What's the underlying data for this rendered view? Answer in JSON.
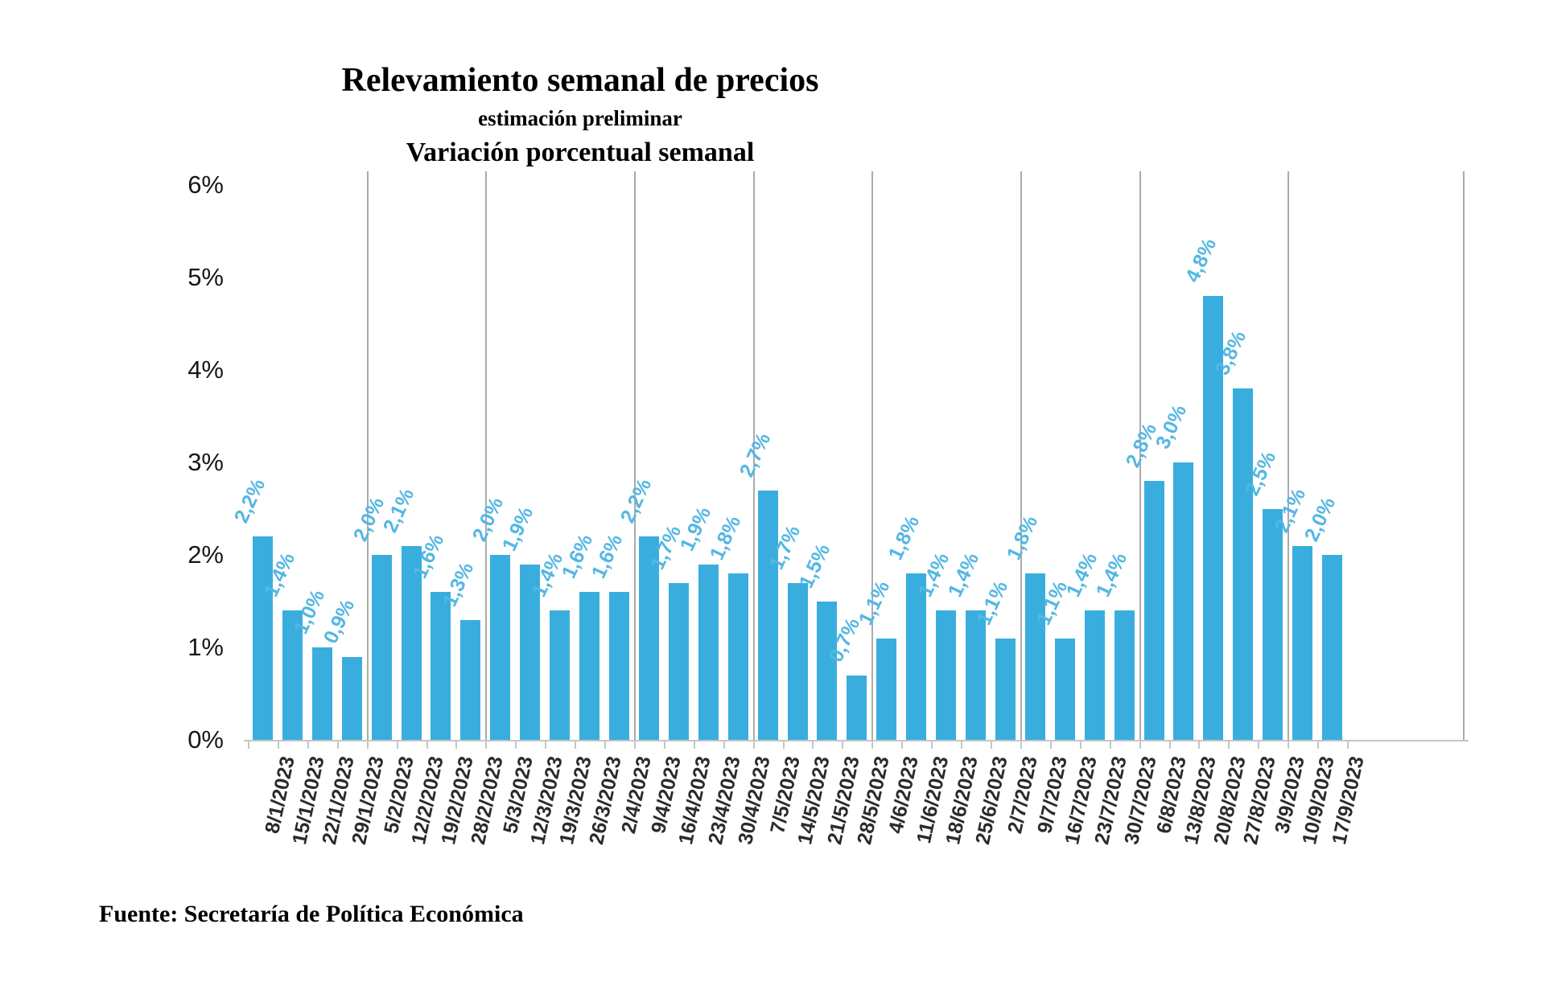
{
  "header": {
    "title": "Relevamiento semanal de precios",
    "subtitle": "estimación preliminar",
    "variation_title": "Variación porcentual semanal"
  },
  "footer": {
    "source": "Fuente: Secretaría de Política Económica"
  },
  "chart_data": {
    "type": "bar",
    "title": "Relevamiento semanal de precios",
    "subtitle": "estimación preliminar",
    "series_name": "Variación porcentual semanal",
    "xlabel": "",
    "ylabel": "",
    "ylim": [
      0,
      6
    ],
    "y_ticks": [
      "6%",
      "5%",
      "4%",
      "3%",
      "2%",
      "1%",
      "0%"
    ],
    "y_tick_values": [
      6,
      5,
      4,
      3,
      2,
      1,
      0
    ],
    "grid": "vertical-group-separators",
    "legend": "none",
    "categories": [
      "8/1/2023",
      "15/1/2023",
      "22/1/2023",
      "29/1/2023",
      "5/2/2023",
      "12/2/2023",
      "19/2/2023",
      "28/2/2023",
      "5/3/2023",
      "12/3/2023",
      "19/3/2023",
      "26/3/2023",
      "2/4/2023",
      "9/4/2023",
      "16/4/2023",
      "23/4/2023",
      "30/4/2023",
      "7/5/2023",
      "14/5/2023",
      "21/5/2023",
      "28/5/2023",
      "4/6/2023",
      "11/6/2023",
      "18/6/2023",
      "25/6/2023",
      "2/7/2023",
      "9/7/2023",
      "16/7/2023",
      "23/7/2023",
      "30/7/2023",
      "6/8/2023",
      "13/8/2023",
      "20/8/2023",
      "27/8/2023",
      "3/9/2023",
      "10/9/2023",
      "17/9/2023"
    ],
    "values": [
      2.2,
      1.4,
      1.0,
      0.9,
      2.0,
      2.1,
      1.6,
      1.3,
      2.0,
      1.9,
      1.4,
      1.6,
      1.6,
      2.2,
      1.7,
      1.9,
      1.8,
      2.7,
      1.7,
      1.5,
      0.7,
      1.1,
      1.8,
      1.4,
      1.4,
      1.1,
      1.8,
      1.1,
      1.4,
      1.4,
      2.8,
      3.0,
      4.8,
      3.8,
      2.5,
      2.1,
      2.0
    ],
    "value_labels": [
      "2,2%",
      "1,4%",
      "1,0%",
      "0,9%",
      "2,0%",
      "2,1%",
      "1,6%",
      "1,3%",
      "2,0%",
      "1,9%",
      "1,4%",
      "1,6%",
      "1,6%",
      "2,2%",
      "1,7%",
      "1,9%",
      "1,8%",
      "2,7%",
      "1,7%",
      "1,5%",
      "0,7%",
      "1,1%",
      "1,8%",
      "1,4%",
      "1,4%",
      "1,1%",
      "1,8%",
      "1,1%",
      "1,4%",
      "1,4%",
      "2,8%",
      "3,0%",
      "4,8%",
      "3,8%",
      "2,5%",
      "2,1%",
      "2,0%"
    ],
    "separator_after_category": [
      "29/1/2023",
      "28/2/2023",
      "2/4/2023",
      "30/4/2023",
      "28/5/2023",
      "2/7/2023",
      "30/7/2023",
      "3/9/2023"
    ],
    "colors": {
      "bar": "#39AEDE",
      "value_label": "#54B7E3",
      "gridline": "#ABABAB",
      "axis": "#C6C6C6",
      "date_label": "#2B2B2B",
      "tick_label": "#171717"
    }
  }
}
